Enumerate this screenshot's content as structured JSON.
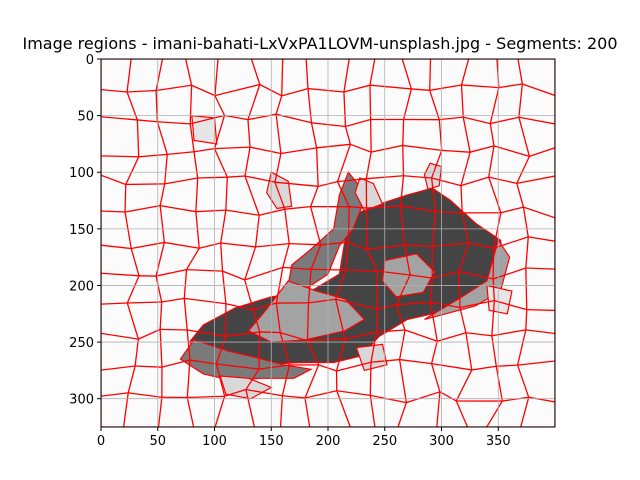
{
  "chart_data": {
    "type": "heatmap",
    "title": "Image regions - imani-bahati-LxVxPA1LOVM-unsplash.jpg - Segments: 200",
    "xlabel": "",
    "ylabel": "",
    "xlim": [
      0,
      400
    ],
    "ylim": [
      325,
      0
    ],
    "x_ticks": [
      0,
      50,
      100,
      150,
      200,
      250,
      300,
      350
    ],
    "y_ticks": [
      0,
      50,
      100,
      150,
      200,
      250,
      300
    ],
    "grid": true,
    "segments": 200,
    "boundary_color": "#ff0000",
    "background_color": "#fbfbfb",
    "regions": [
      {
        "shade": "dark",
        "color": "#454445",
        "outline": [
          [
            292,
            114
          ],
          [
            308,
            125
          ],
          [
            330,
            145
          ],
          [
            352,
            160
          ],
          [
            356,
            190
          ],
          [
            340,
            212
          ],
          [
            305,
            222
          ],
          [
            270,
            230
          ],
          [
            245,
            245
          ],
          [
            230,
            262
          ],
          [
            205,
            268
          ],
          [
            175,
            268
          ],
          [
            145,
            270
          ],
          [
            115,
            270
          ],
          [
            90,
            262
          ],
          [
            78,
            250
          ],
          [
            90,
            235
          ],
          [
            118,
            220
          ],
          [
            150,
            210
          ],
          [
            185,
            205
          ],
          [
            210,
            190
          ],
          [
            215,
            160
          ],
          [
            218,
            140
          ],
          [
            240,
            130
          ],
          [
            270,
            120
          ]
        ]
      },
      {
        "shade": "mid",
        "color": "#7b7a7b",
        "outline": [
          [
            218,
            100
          ],
          [
            226,
            110
          ],
          [
            230,
            130
          ],
          [
            222,
            150
          ],
          [
            210,
            165
          ],
          [
            200,
            190
          ],
          [
            182,
            202
          ],
          [
            165,
            200
          ],
          [
            168,
            182
          ],
          [
            185,
            168
          ],
          [
            205,
            150
          ],
          [
            210,
            120
          ]
        ]
      },
      {
        "shade": "mid",
        "color": "#7b7a7b",
        "outline": [
          [
            82,
            248
          ],
          [
            112,
            258
          ],
          [
            138,
            264
          ],
          [
            160,
            270
          ],
          [
            185,
            274
          ],
          [
            170,
            282
          ],
          [
            140,
            282
          ],
          [
            115,
            284
          ],
          [
            90,
            278
          ],
          [
            70,
            265
          ]
        ]
      },
      {
        "shade": "light",
        "color": "#a4a3a4",
        "outline": [
          [
            165,
            196
          ],
          [
            190,
            205
          ],
          [
            215,
            212
          ],
          [
            232,
            230
          ],
          [
            215,
            240
          ],
          [
            180,
            248
          ],
          [
            150,
            250
          ],
          [
            130,
            240
          ],
          [
            145,
            222
          ]
        ]
      },
      {
        "shade": "light",
        "color": "#a4a3a4",
        "outline": [
          [
            250,
            178
          ],
          [
            278,
            172
          ],
          [
            294,
            188
          ],
          [
            284,
            206
          ],
          [
            260,
            210
          ],
          [
            248,
            196
          ]
        ]
      },
      {
        "shade": "light",
        "color": "#a4a3a4",
        "outline": [
          [
            350,
            160
          ],
          [
            360,
            175
          ],
          [
            352,
            205
          ],
          [
            330,
            218
          ],
          [
            300,
            226
          ],
          [
            285,
            230
          ],
          [
            315,
            212
          ],
          [
            340,
            196
          ]
        ]
      },
      {
        "shade": "pale",
        "color": "#d9d8d9",
        "outline": [
          [
            150,
            100
          ],
          [
            165,
            108
          ],
          [
            168,
            130
          ],
          [
            155,
            132
          ],
          [
            146,
            118
          ]
        ]
      },
      {
        "shade": "pale",
        "color": "#d9d8d9",
        "outline": [
          [
            228,
            105
          ],
          [
            240,
            110
          ],
          [
            248,
            128
          ],
          [
            232,
            134
          ],
          [
            224,
            118
          ]
        ]
      },
      {
        "shade": "pale",
        "color": "#d9d8d9",
        "outline": [
          [
            290,
            92
          ],
          [
            300,
            95
          ],
          [
            298,
            112
          ],
          [
            288,
            115
          ],
          [
            285,
            102
          ]
        ]
      },
      {
        "shade": "pale",
        "color": "#d9d8d9",
        "outline": [
          [
            105,
            280
          ],
          [
            130,
            282
          ],
          [
            150,
            290
          ],
          [
            132,
            300
          ],
          [
            110,
            296
          ]
        ]
      },
      {
        "shade": "pale",
        "color": "#d9d8d9",
        "outline": [
          [
            225,
            255
          ],
          [
            248,
            252
          ],
          [
            252,
            270
          ],
          [
            232,
            275
          ]
        ]
      },
      {
        "shade": "pale",
        "color": "#e6e5e6",
        "outline": [
          [
            80,
            50
          ],
          [
            100,
            52
          ],
          [
            102,
            75
          ],
          [
            82,
            72
          ]
        ]
      },
      {
        "shade": "pale",
        "color": "#e6e5e6",
        "outline": [
          [
            340,
            200
          ],
          [
            362,
            205
          ],
          [
            358,
            225
          ],
          [
            342,
            222
          ]
        ]
      }
    ]
  }
}
